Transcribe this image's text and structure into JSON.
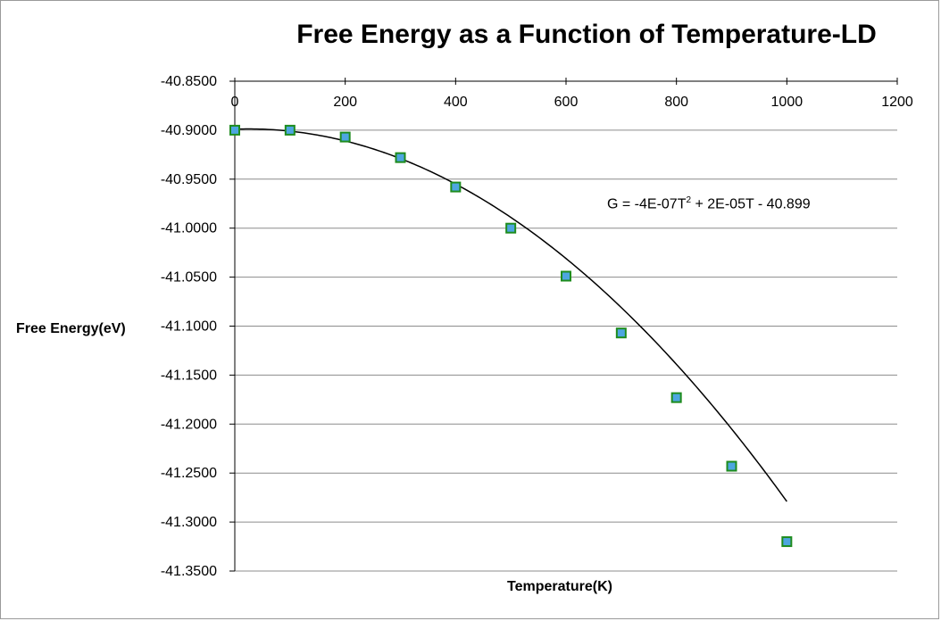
{
  "chart_data": {
    "type": "scatter",
    "title": "Free Energy as a Function of Temperature-LD",
    "xlabel": "Temperature(K)",
    "ylabel": "Free Energy(eV)",
    "xlim": [
      0,
      1200
    ],
    "ylim": [
      -41.35,
      -40.85
    ],
    "x_ticks": [
      0,
      200,
      400,
      600,
      800,
      1000,
      1200
    ],
    "y_ticks": [
      -40.85,
      -40.9,
      -40.95,
      -41.0,
      -41.05,
      -41.1,
      -41.15,
      -41.2,
      -41.25,
      -41.3,
      -41.35
    ],
    "x_tick_labels": [
      "0",
      "200",
      "400",
      "600",
      "800",
      "1000",
      "1200"
    ],
    "y_tick_labels": [
      "-40.8500",
      "-40.9000",
      "-40.9500",
      "-41.0000",
      "-41.0500",
      "-41.1000",
      "-41.1500",
      "-41.2000",
      "-41.2500",
      "-41.3000",
      "-41.3500"
    ],
    "x_axis_position": "top",
    "grid": "horizontal",
    "series": [
      {
        "name": "Free Energy",
        "marker": "square",
        "marker_fill": "#4da6e0",
        "marker_edge": "#1e8c1e",
        "x": [
          0,
          100,
          200,
          300,
          400,
          500,
          600,
          700,
          800,
          900,
          1000
        ],
        "y": [
          -40.9,
          -40.9,
          -40.907,
          -40.928,
          -40.958,
          -41.0,
          -41.049,
          -41.107,
          -41.173,
          -41.243,
          -41.32
        ]
      }
    ],
    "trendline": {
      "type": "polynomial",
      "order": 2,
      "coefficients": {
        "a": -4e-07,
        "b": 2e-05,
        "c": -40.899
      },
      "x_range": [
        0,
        1000
      ],
      "color": "#000000"
    },
    "annotations": {
      "equation_prefix": "G = -4E-07T",
      "equation_sup": "2",
      "equation_suffix": " + 2E-05T - 40.899"
    }
  }
}
